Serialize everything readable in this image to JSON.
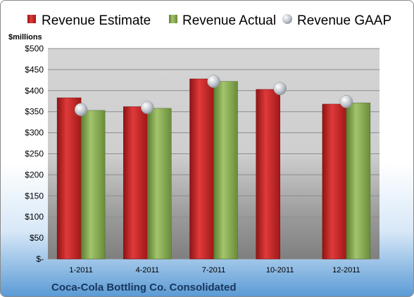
{
  "chart_data": {
    "type": "bar",
    "title": "",
    "footer_title": "Coca-Cola Bottling Co. Consolidated",
    "ylabel": "$millions",
    "xlabel": "",
    "categories": [
      "1-2011",
      "4-2011",
      "7-2011",
      "10-2011",
      "12-2011"
    ],
    "ylim": [
      0,
      500
    ],
    "yticks": [
      0,
      50,
      100,
      150,
      200,
      250,
      300,
      350,
      400,
      450,
      500
    ],
    "ytick_labels": [
      "$-",
      "$50",
      "$100",
      "$150",
      "$200",
      "$250",
      "$300",
      "$350",
      "$400",
      "$450",
      "$500"
    ],
    "series": [
      {
        "name": "Revenue Estimate",
        "type": "bar",
        "color": "#c0282a",
        "values": [
          383,
          362,
          428,
          403,
          368
        ]
      },
      {
        "name": "Revenue Actual",
        "type": "bar",
        "color": "#7ba34a",
        "values": [
          353,
          358,
          422,
          null,
          371
        ]
      },
      {
        "name": "Revenue GAAP",
        "type": "scatter",
        "color": "#b8bcc4",
        "values": [
          355,
          360,
          422,
          405,
          374
        ]
      }
    ],
    "grid": true,
    "legend_position": "top"
  }
}
